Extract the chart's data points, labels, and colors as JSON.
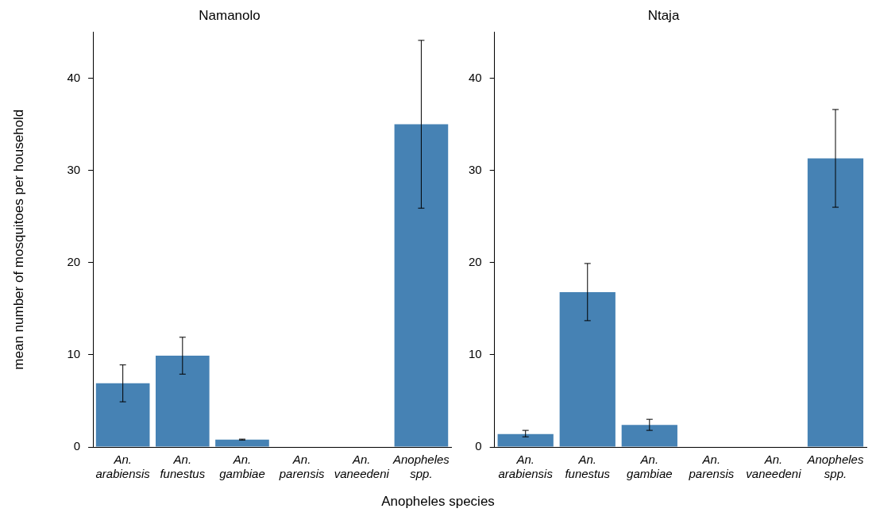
{
  "chart_data": [
    {
      "type": "bar",
      "title": "Namanolo",
      "ylabel": "mean number of mosquitoes per household",
      "xlabel": "Anopheles species",
      "categories": [
        "An. arabiensis",
        "An. funestus",
        "An. gambiae",
        "An. parensis",
        "An. vaneedeni",
        "Anopheles spp."
      ],
      "values": [
        6.9,
        9.9,
        0.8,
        0,
        0,
        35.0
      ],
      "errors": [
        [
          4.9,
          8.9
        ],
        [
          7.9,
          11.9
        ],
        [
          0.75,
          0.85
        ],
        null,
        null,
        [
          25.9,
          44.1
        ]
      ],
      "color": "#4682b4",
      "ylim": [
        0,
        45
      ],
      "yticks": [
        0,
        10,
        20,
        30,
        40
      ],
      "grid": false,
      "legend": false
    },
    {
      "type": "bar",
      "title": "Ntaja",
      "categories": [
        "An. arabiensis",
        "An. funestus",
        "An. gambiae",
        "An. parensis",
        "An. vaneedeni",
        "Anopheles spp."
      ],
      "values": [
        1.4,
        16.8,
        2.4,
        0,
        0,
        31.3
      ],
      "errors": [
        [
          1.1,
          1.8
        ],
        [
          13.7,
          19.9
        ],
        [
          1.8,
          3.0
        ],
        null,
        null,
        [
          26.0,
          36.6
        ]
      ],
      "color": "#4682b4",
      "ylim": [
        0,
        45
      ],
      "yticks": [
        0,
        10,
        20,
        30,
        40
      ],
      "grid": false,
      "legend": false
    }
  ]
}
